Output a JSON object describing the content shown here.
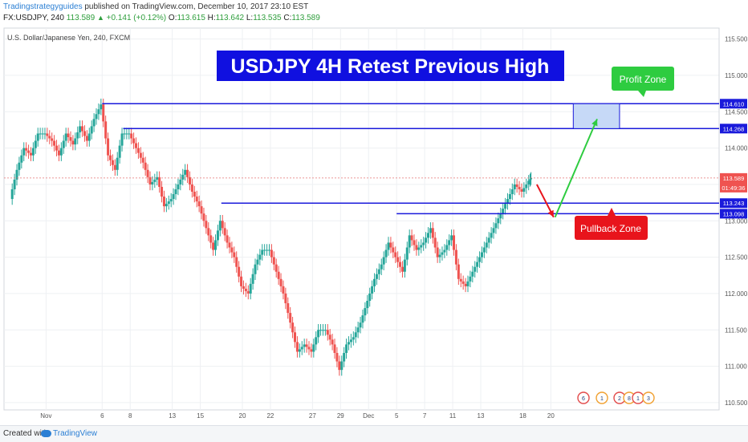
{
  "header": {
    "author": "Tradingstrategyguides",
    "published_text": " published on TradingView.com, December 10, 2017 23:10 EST",
    "symbol": "FX:USDJPY, 240",
    "last": "113.589",
    "change": "+0.141 (+0.12%)",
    "o_label": "O:",
    "o_value": "113.615",
    "h_label": "H:",
    "h_value": "113.642",
    "l_label": "L:",
    "l_value": "113.535",
    "c_label": "C:",
    "c_value": "113.589"
  },
  "footer": {
    "created_with": "Created with",
    "brand": "TradingView"
  },
  "colors": {
    "bull": "#26a69a",
    "bear": "#ef5350",
    "level_line": "#1a1adb",
    "title_bg": "#1010e0",
    "profit_zone": "#2ecc40",
    "pullback_zone": "#e8141c",
    "zone_fill": "#c6d9f7",
    "price_line": "#e57373",
    "axis_label_bg": "#1a1adb"
  },
  "chart_data": {
    "type": "candlestick",
    "instrument": "U.S. Dollar/Japanese Yen, 240, FXCM",
    "title": "USDJPY 4H Retest Previous High",
    "y_axis": {
      "range": [
        110.4,
        115.65
      ],
      "ticks": [
        "115.500",
        "115.000",
        "114.500",
        "114.000",
        "113.500",
        "113.000",
        "112.500",
        "112.000",
        "111.500",
        "111.000",
        "110.500"
      ],
      "side": "right"
    },
    "x_axis": {
      "range": [
        -3,
        48
      ],
      "ticks": [
        {
          "label": "Nov",
          "x": 0
        },
        {
          "label": "6",
          "x": 4
        },
        {
          "label": "8",
          "x": 6
        },
        {
          "label": "13",
          "x": 9
        },
        {
          "label": "15",
          "x": 11
        },
        {
          "label": "20",
          "x": 14
        },
        {
          "label": "22",
          "x": 16
        },
        {
          "label": "27",
          "x": 19
        },
        {
          "label": "29",
          "x": 21
        },
        {
          "label": "Dec",
          "x": 23
        },
        {
          "label": "5",
          "x": 25
        },
        {
          "label": "7",
          "x": 27
        },
        {
          "label": "11",
          "x": 29
        },
        {
          "label": "13",
          "x": 31
        },
        {
          "label": "18",
          "x": 34
        },
        {
          "label": "20",
          "x": 36
        }
      ]
    },
    "close_series": [
      {
        "x": -2.5,
        "c": 113.3
      },
      {
        "x": -2,
        "c": 113.7
      },
      {
        "x": -1.5,
        "c": 114.0
      },
      {
        "x": -1,
        "c": 113.9
      },
      {
        "x": -0.5,
        "c": 114.2
      },
      {
        "x": 0,
        "c": 114.2
      },
      {
        "x": 0.5,
        "c": 114.1
      },
      {
        "x": 1,
        "c": 113.9
      },
      {
        "x": 1.5,
        "c": 114.2
      },
      {
        "x": 2,
        "c": 114.05
      },
      {
        "x": 2.5,
        "c": 114.3
      },
      {
        "x": 3,
        "c": 114.1
      },
      {
        "x": 3.5,
        "c": 114.4
      },
      {
        "x": 4,
        "c": 114.6
      },
      {
        "x": 4.5,
        "c": 113.9
      },
      {
        "x": 5,
        "c": 113.7
      },
      {
        "x": 5.5,
        "c": 114.2
      },
      {
        "x": 6,
        "c": 114.2
      },
      {
        "x": 6.5,
        "c": 114.0
      },
      {
        "x": 7,
        "c": 113.8
      },
      {
        "x": 7.5,
        "c": 113.5
      },
      {
        "x": 8,
        "c": 113.6
      },
      {
        "x": 8.5,
        "c": 113.2
      },
      {
        "x": 9,
        "c": 113.3
      },
      {
        "x": 9.5,
        "c": 113.5
      },
      {
        "x": 10,
        "c": 113.7
      },
      {
        "x": 10.5,
        "c": 113.4
      },
      {
        "x": 11,
        "c": 113.2
      },
      {
        "x": 11.5,
        "c": 112.9
      },
      {
        "x": 12,
        "c": 112.6
      },
      {
        "x": 12.5,
        "c": 113.0
      },
      {
        "x": 13,
        "c": 112.7
      },
      {
        "x": 13.5,
        "c": 112.5
      },
      {
        "x": 14,
        "c": 112.1
      },
      {
        "x": 14.5,
        "c": 112.0
      },
      {
        "x": 15,
        "c": 112.4
      },
      {
        "x": 15.5,
        "c": 112.6
      },
      {
        "x": 16,
        "c": 112.6
      },
      {
        "x": 16.5,
        "c": 112.3
      },
      {
        "x": 17,
        "c": 112.0
      },
      {
        "x": 17.5,
        "c": 111.6
      },
      {
        "x": 18,
        "c": 111.2
      },
      {
        "x": 18.5,
        "c": 111.3
      },
      {
        "x": 19,
        "c": 111.2
      },
      {
        "x": 19.5,
        "c": 111.5
      },
      {
        "x": 20,
        "c": 111.5
      },
      {
        "x": 20.5,
        "c": 111.3
      },
      {
        "x": 21,
        "c": 110.95
      },
      {
        "x": 21.5,
        "c": 111.3
      },
      {
        "x": 22,
        "c": 111.4
      },
      {
        "x": 22.5,
        "c": 111.6
      },
      {
        "x": 23,
        "c": 111.9
      },
      {
        "x": 23.5,
        "c": 112.2
      },
      {
        "x": 24,
        "c": 112.4
      },
      {
        "x": 24.5,
        "c": 112.7
      },
      {
        "x": 25,
        "c": 112.5
      },
      {
        "x": 25.5,
        "c": 112.3
      },
      {
        "x": 26,
        "c": 112.8
      },
      {
        "x": 26.5,
        "c": 112.6
      },
      {
        "x": 27,
        "c": 112.7
      },
      {
        "x": 27.5,
        "c": 112.9
      },
      {
        "x": 28,
        "c": 112.5
      },
      {
        "x": 28.5,
        "c": 112.6
      },
      {
        "x": 29,
        "c": 112.8
      },
      {
        "x": 29.5,
        "c": 112.2
      },
      {
        "x": 30,
        "c": 112.1
      },
      {
        "x": 30.5,
        "c": 112.3
      },
      {
        "x": 31,
        "c": 112.5
      },
      {
        "x": 31.5,
        "c": 112.7
      },
      {
        "x": 32,
        "c": 112.9
      },
      {
        "x": 32.5,
        "c": 113.1
      },
      {
        "x": 33,
        "c": 113.3
      },
      {
        "x": 33.5,
        "c": 113.5
      },
      {
        "x": 34,
        "c": 113.4
      },
      {
        "x": 34.5,
        "c": 113.55
      },
      {
        "x": 34.6,
        "c": 113.589
      }
    ],
    "levels": [
      {
        "value": 114.61,
        "label": "114.610",
        "from_x": 4
      },
      {
        "value": 114.268,
        "label": "114.268",
        "from_x": 5.5
      },
      {
        "value": 113.243,
        "label": "113.243",
        "from_x": 12.5
      },
      {
        "value": 113.098,
        "label": "113.098",
        "from_x": 25
      }
    ],
    "current_price": {
      "value": 113.589,
      "label": "113.589",
      "countdown": "01:49:36"
    },
    "profit_box": {
      "x_from": 37.6,
      "x_to": 40.9,
      "y_from": 114.268,
      "y_to": 114.61
    },
    "annotations": [
      {
        "name": "profit",
        "text": "Profit Zone"
      },
      {
        "name": "pullback",
        "text": "Pullback Zone"
      }
    ],
    "arrows": [
      {
        "name": "down",
        "from": [
          35.0,
          113.5
        ],
        "to": [
          36.2,
          113.05
        ]
      },
      {
        "name": "up",
        "from": [
          36.3,
          113.05
        ],
        "to": [
          39.3,
          114.4
        ]
      }
    ],
    "event_markers": [
      "6",
      "1",
      "2",
      "8",
      "1",
      "3"
    ]
  }
}
